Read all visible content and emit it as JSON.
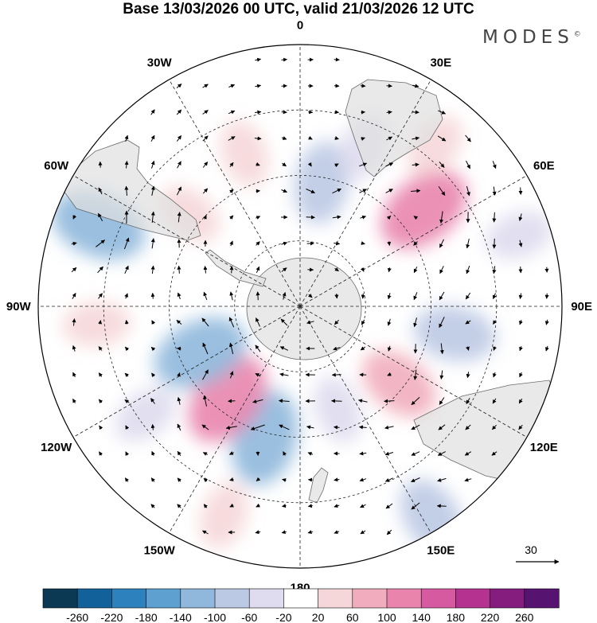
{
  "title": "Base 13/03/2026 00 UTC, valid 21/03/2026 12 UTC",
  "brand": "MODES",
  "brand_mark": "©",
  "longitude_labels": [
    {
      "text": "0",
      "deg": 0
    },
    {
      "text": "30E",
      "deg": 30
    },
    {
      "text": "60E",
      "deg": 60
    },
    {
      "text": "90E",
      "deg": 90
    },
    {
      "text": "120E",
      "deg": 120
    },
    {
      "text": "150E",
      "deg": 150
    },
    {
      "text": "180",
      "deg": 180
    },
    {
      "text": "150W",
      "deg": 210
    },
    {
      "text": "120W",
      "deg": 240
    },
    {
      "text": "90W",
      "deg": 270
    },
    {
      "text": "60W",
      "deg": 300
    },
    {
      "text": "30W",
      "deg": 330
    }
  ],
  "reference_vector_label": "30",
  "colorbar": {
    "ticks": [
      "-260",
      "-220",
      "-180",
      "-140",
      "-100",
      "-60",
      "-20",
      "20",
      "60",
      "100",
      "140",
      "180",
      "220",
      "260"
    ],
    "colors": [
      "#0b3954",
      "#12619a",
      "#2d82bd",
      "#5ea1d0",
      "#8fb8dc",
      "#bcc9e4",
      "#dedcee",
      "#ffffff",
      "#f6d7d9",
      "#f1adbd",
      "#e985ad",
      "#d65aa0",
      "#b53290",
      "#851d7f",
      "#561370"
    ]
  },
  "anomalies": [
    {
      "a": 10,
      "r": 0.48,
      "sign": "neg",
      "level": 2
    },
    {
      "a": 22,
      "r": 0.66,
      "sign": "neg",
      "level": 1
    },
    {
      "a": 52,
      "r": 0.6,
      "sign": "pos",
      "level": 3
    },
    {
      "a": 40,
      "r": 0.8,
      "sign": "pos",
      "level": 1
    },
    {
      "a": 100,
      "r": 0.6,
      "sign": "neg",
      "level": 2
    },
    {
      "a": 128,
      "r": 0.48,
      "sign": "pos",
      "level": 2
    },
    {
      "a": 160,
      "r": 0.42,
      "sign": "neg",
      "level": 1
    },
    {
      "a": 195,
      "r": 0.52,
      "sign": "neg",
      "level": 3
    },
    {
      "a": 218,
      "r": 0.45,
      "sign": "pos",
      "level": 3
    },
    {
      "a": 245,
      "r": 0.42,
      "sign": "neg",
      "level": 3
    },
    {
      "a": 265,
      "r": 0.78,
      "sign": "pos",
      "level": 1
    },
    {
      "a": 292,
      "r": 0.83,
      "sign": "neg",
      "level": 3
    },
    {
      "a": 310,
      "r": 0.55,
      "sign": "pos",
      "level": 1
    },
    {
      "a": 340,
      "r": 0.62,
      "sign": "pos",
      "level": 1
    },
    {
      "a": 200,
      "r": 0.85,
      "sign": "pos",
      "level": 1
    },
    {
      "a": 148,
      "r": 0.95,
      "sign": "neg",
      "level": 2
    },
    {
      "a": 72,
      "r": 0.88,
      "sign": "neg",
      "level": 1
    },
    {
      "a": 235,
      "r": 0.72,
      "sign": "neg",
      "level": 1
    }
  ]
}
